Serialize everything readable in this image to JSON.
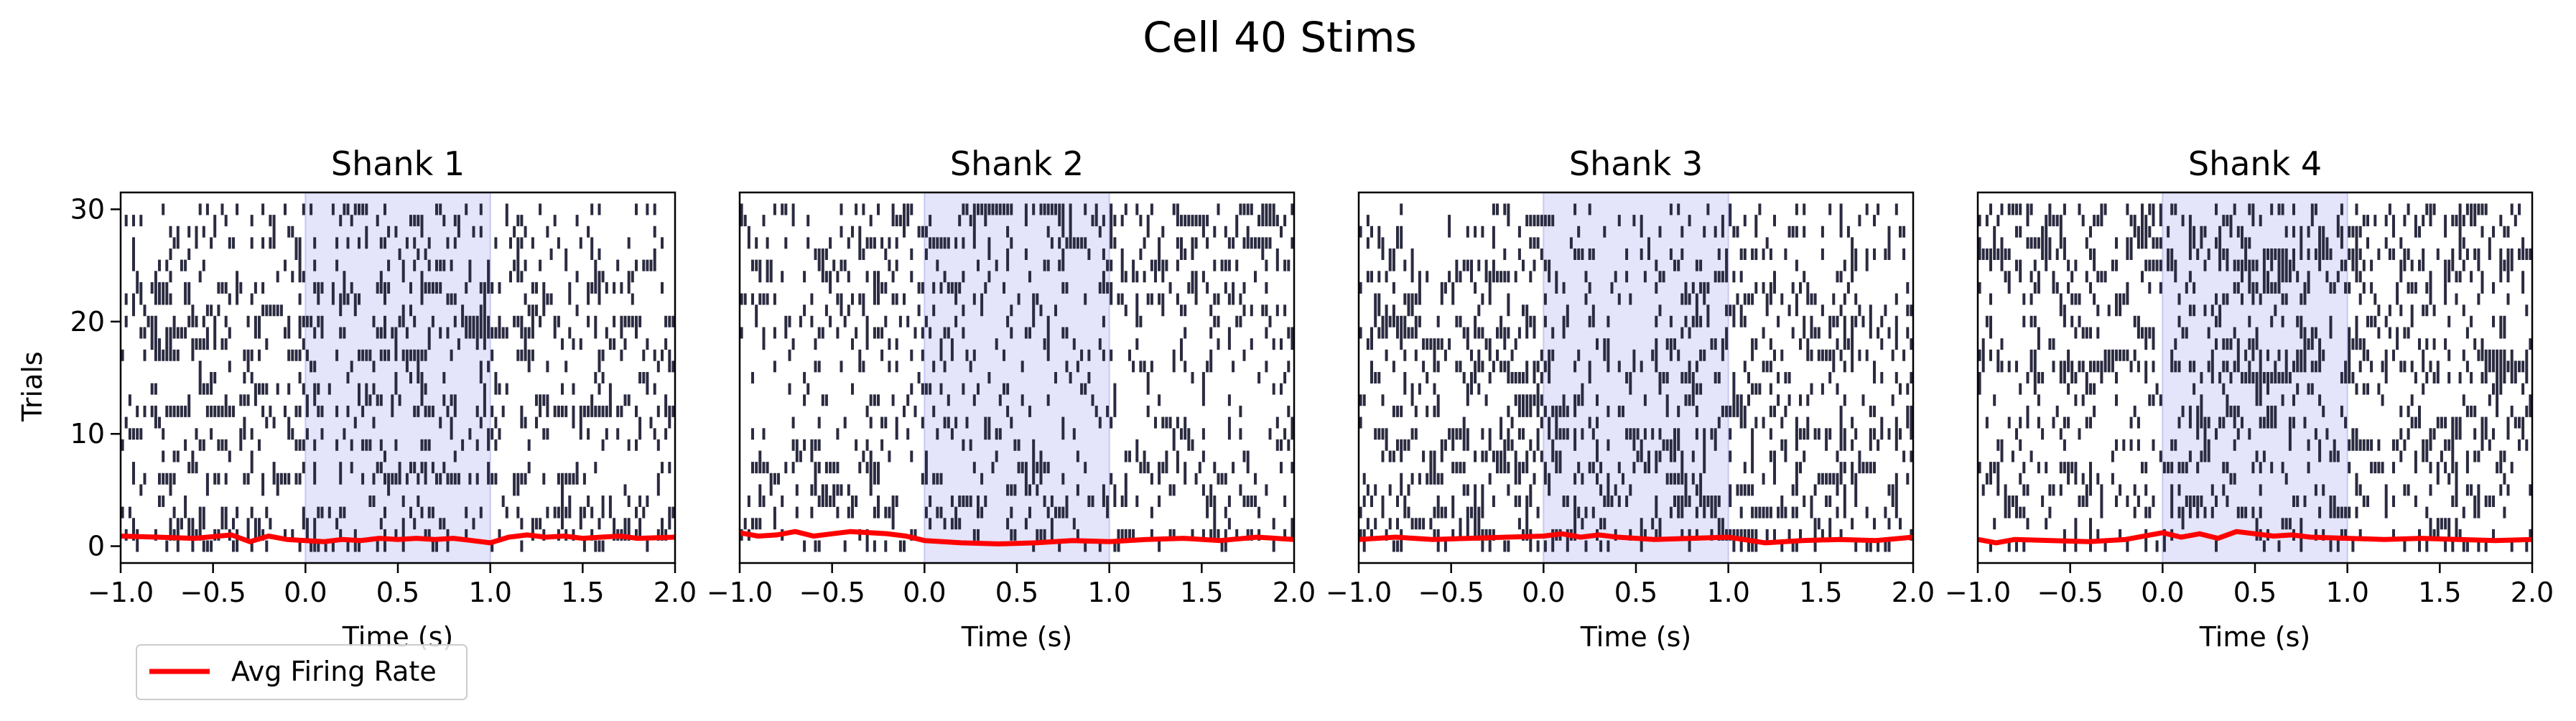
{
  "figure": {
    "title": "Cell 40 Stims",
    "ylabel": "Trials",
    "legend": {
      "label": "Avg Firing Rate",
      "color": "#ff0000",
      "placement": "lower-left below axes"
    }
  },
  "chart_data": [
    {
      "type": "raster",
      "title": "Shank 1",
      "xlabel": "Time (s)",
      "xlim": [
        -1.0,
        2.0
      ],
      "ylim": [
        -1.5,
        31.5
      ],
      "xticks": [
        "−1.0",
        "−0.5",
        "0.0",
        "0.5",
        "1.0",
        "1.5",
        "2.0"
      ],
      "yticks": [
        "0",
        "10",
        "20",
        "30"
      ],
      "stim_window": [
        0.0,
        1.0
      ],
      "spike_color": "#2a2a40",
      "shade_color": "#e4e4fb",
      "density": [
        0.16,
        0.22,
        0.21,
        0.23,
        0.19,
        0.07,
        0.24,
        0.15,
        0.05,
        0.14,
        0.15,
        0.1,
        0.38,
        0.2,
        0.19,
        0.15,
        0.08,
        0.18,
        0.19,
        0.23,
        0.28,
        0.15,
        0.21,
        0.25,
        0.17,
        0.15,
        0.06,
        0.17,
        0.11,
        0.13,
        0.14
      ],
      "avg_rate": {
        "x": [
          -1.0,
          -0.8,
          -0.6,
          -0.4,
          -0.3,
          -0.2,
          -0.1,
          0.0,
          0.1,
          0.2,
          0.3,
          0.4,
          0.5,
          0.6,
          0.7,
          0.8,
          0.9,
          1.0,
          1.1,
          1.2,
          1.3,
          1.4,
          1.5,
          1.6,
          1.7,
          1.8,
          2.0
        ],
        "y": [
          0.9,
          0.8,
          0.7,
          1.0,
          0.4,
          0.9,
          0.6,
          0.5,
          0.4,
          0.6,
          0.5,
          0.7,
          0.6,
          0.7,
          0.6,
          0.7,
          0.5,
          0.3,
          0.8,
          1.0,
          0.8,
          0.9,
          0.7,
          0.8,
          0.9,
          0.7,
          0.8
        ]
      }
    },
    {
      "type": "raster",
      "title": "Shank 2",
      "xlabel": "Time (s)",
      "xlim": [
        -1.0,
        2.0
      ],
      "ylim": [
        -1.5,
        31.5
      ],
      "xticks": [
        "−1.0",
        "−0.5",
        "0.0",
        "0.5",
        "1.0",
        "1.5",
        "2.0"
      ],
      "yticks": [],
      "stim_window": [
        0.0,
        1.0
      ],
      "spike_color": "#2a2a40",
      "shade_color": "#e4e4fb",
      "density": [
        0.08,
        0.15,
        0.12,
        0.18,
        0.2,
        0.15,
        0.1,
        0.22,
        0.14,
        0.11,
        0.1,
        0.17,
        0.06,
        0.1,
        0.13,
        0.1,
        0.12,
        0.14,
        0.13,
        0.16,
        0.14,
        0.12,
        0.18,
        0.15,
        0.17,
        0.22,
        0.14,
        0.28,
        0.18,
        0.24,
        0.19
      ],
      "avg_rate": {
        "x": [
          -1.0,
          -0.9,
          -0.8,
          -0.7,
          -0.6,
          -0.5,
          -0.4,
          -0.3,
          -0.2,
          -0.1,
          0.0,
          0.2,
          0.4,
          0.6,
          0.8,
          1.0,
          1.2,
          1.4,
          1.6,
          1.8,
          2.0
        ],
        "y": [
          1.2,
          0.9,
          1.0,
          1.3,
          0.9,
          1.1,
          1.3,
          1.2,
          1.1,
          0.9,
          0.5,
          0.3,
          0.2,
          0.3,
          0.5,
          0.4,
          0.6,
          0.7,
          0.5,
          0.8,
          0.6
        ]
      }
    },
    {
      "type": "raster",
      "title": "Shank 3",
      "xlabel": "Time (s)",
      "xlim": [
        -1.0,
        2.0
      ],
      "ylim": [
        -1.5,
        31.5
      ],
      "xticks": [
        "−1.0",
        "−0.5",
        "0.0",
        "0.5",
        "1.0",
        "1.5",
        "2.0"
      ],
      "yticks": [],
      "stim_window": [
        0.0,
        1.0
      ],
      "spike_color": "#2a2a40",
      "shade_color": "#e4e4fb",
      "density": [
        0.2,
        0.3,
        0.17,
        0.25,
        0.22,
        0.19,
        0.23,
        0.18,
        0.21,
        0.2,
        0.27,
        0.14,
        0.18,
        0.2,
        0.13,
        0.22,
        0.14,
        0.16,
        0.23,
        0.14,
        0.21,
        0.1,
        0.18,
        0.17,
        0.2,
        0.11,
        0.14,
        0.08,
        0.13,
        0.12,
        0.1
      ],
      "avg_rate": {
        "x": [
          -1.0,
          -0.8,
          -0.6,
          -0.4,
          -0.2,
          0.0,
          0.1,
          0.2,
          0.3,
          0.4,
          0.6,
          0.8,
          1.0,
          1.2,
          1.4,
          1.6,
          1.8,
          2.0
        ],
        "y": [
          0.6,
          0.8,
          0.6,
          0.7,
          0.8,
          0.9,
          1.1,
          0.8,
          1.0,
          0.8,
          0.6,
          0.7,
          0.8,
          0.3,
          0.5,
          0.6,
          0.5,
          0.8
        ]
      }
    },
    {
      "type": "raster",
      "title": "Shank 4",
      "xlabel": "Time (s)",
      "xlim": [
        -1.0,
        2.0
      ],
      "ylim": [
        -1.5,
        31.5
      ],
      "xticks": [
        "−1.0",
        "−0.5",
        "0.0",
        "0.5",
        "1.0",
        "1.5",
        "2.0"
      ],
      "yticks": [],
      "stim_window": [
        0.0,
        1.0
      ],
      "spike_color": "#2a2a40",
      "shade_color": "#e4e4fb",
      "density": [
        0.1,
        0.14,
        0.1,
        0.15,
        0.16,
        0.2,
        0.12,
        0.18,
        0.14,
        0.2,
        0.12,
        0.22,
        0.14,
        0.14,
        0.12,
        0.3,
        0.4,
        0.22,
        0.18,
        0.16,
        0.18,
        0.12,
        0.16,
        0.2,
        0.14,
        0.24,
        0.36,
        0.2,
        0.26,
        0.2,
        0.22
      ],
      "avg_rate": {
        "x": [
          -1.0,
          -0.9,
          -0.8,
          -0.6,
          -0.4,
          -0.2,
          0.0,
          0.1,
          0.2,
          0.3,
          0.4,
          0.5,
          0.6,
          0.7,
          0.8,
          1.0,
          1.2,
          1.4,
          1.6,
          1.8,
          2.0
        ],
        "y": [
          0.6,
          0.3,
          0.6,
          0.5,
          0.4,
          0.6,
          1.2,
          0.8,
          1.1,
          0.7,
          1.3,
          1.1,
          0.9,
          1.0,
          0.8,
          0.7,
          0.6,
          0.7,
          0.6,
          0.5,
          0.6
        ]
      }
    }
  ]
}
